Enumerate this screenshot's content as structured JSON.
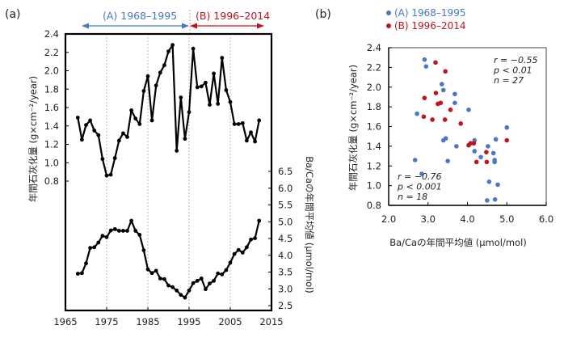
{
  "chart_data": [
    {
      "panel_label": "(a)",
      "type": "line",
      "period_annotations": [
        {
          "label": "(A) 1968–1995",
          "color": "#4a78c2"
        },
        {
          "label": "(B) 1996–2014",
          "color": "#c0141e"
        }
      ],
      "xlabel": "",
      "x_ticks": [
        "1965",
        "1975",
        "1985",
        "1995",
        "2005",
        "2015"
      ],
      "xlim": [
        1965,
        2015
      ],
      "vertical_gridlines": [
        1975,
        1985,
        1995,
        2005
      ],
      "series": [
        {
          "name": "年間石灰化量",
          "axis": "left",
          "ylabel": "年間石灰化量 (g×cm⁻²/year)",
          "y_ticks": [
            "2.4",
            "2.2",
            "2.0",
            "1.8",
            "1.6",
            "1.4",
            "1.2",
            "1.0",
            "0.8"
          ],
          "ylim": [
            0.6,
            2.4
          ],
          "x": [
            1968,
            1969,
            1970,
            1971,
            1972,
            1973,
            1974,
            1975,
            1976,
            1977,
            1978,
            1979,
            1980,
            1981,
            1982,
            1983,
            1984,
            1985,
            1986,
            1987,
            1988,
            1989,
            1990,
            1991,
            1992,
            1993,
            1994,
            1995,
            1996,
            1997,
            1998,
            1999,
            2000,
            2001,
            2002,
            2003,
            2004,
            2005,
            2006,
            2007,
            2008,
            2009,
            2010,
            2011,
            2012
          ],
          "values": [
            1.49,
            1.25,
            1.41,
            1.46,
            1.35,
            1.3,
            1.04,
            0.86,
            0.87,
            1.05,
            1.24,
            1.32,
            1.28,
            1.57,
            1.48,
            1.42,
            1.78,
            1.94,
            1.46,
            1.84,
            1.98,
            2.06,
            2.21,
            2.28,
            1.13,
            1.71,
            1.26,
            1.55,
            2.24,
            1.82,
            1.83,
            1.87,
            1.63,
            1.97,
            1.64,
            2.14,
            1.79,
            1.66,
            1.42,
            1.42,
            1.43,
            1.24,
            1.33,
            1.23,
            1.46
          ]
        },
        {
          "name": "Ba/Ca の年間平均値",
          "axis": "right",
          "ylabel": "Ba/Caの年間平均値 (μmol/mol)",
          "y_ticks": [
            "6.5",
            "6.0",
            "5.5",
            "5.0",
            "4.5",
            "4.0",
            "3.5",
            "3.0",
            "2.5"
          ],
          "ylim": [
            2.5,
            6.5
          ],
          "x": [
            1968,
            1969,
            1970,
            1971,
            1972,
            1973,
            1974,
            1975,
            1976,
            1977,
            1978,
            1979,
            1980,
            1981,
            1982,
            1983,
            1984,
            1985,
            1986,
            1987,
            1988,
            1989,
            1990,
            1991,
            1992,
            1993,
            1994,
            1995,
            1996,
            1997,
            1998,
            1999,
            2000,
            2001,
            2002,
            2003,
            2004,
            2005,
            2006,
            2007,
            2008,
            2009,
            2010,
            2011,
            2012
          ],
          "values": [
            3.45,
            3.47,
            3.76,
            4.22,
            4.24,
            4.38,
            4.58,
            4.54,
            4.74,
            4.78,
            4.73,
            4.73,
            4.73,
            5.03,
            4.73,
            4.61,
            4.15,
            3.58,
            3.47,
            3.54,
            3.31,
            3.29,
            3.1,
            3.05,
            2.95,
            2.82,
            2.74,
            2.95,
            3.17,
            3.24,
            3.31,
            2.99,
            3.16,
            3.24,
            3.46,
            3.43,
            3.56,
            3.78,
            4.04,
            4.16,
            4.08,
            4.24,
            4.47,
            4.51,
            5.03
          ]
        }
      ]
    },
    {
      "panel_label": "(b)",
      "type": "scatter",
      "xlabel": "Ba/Caの年間平均値 (μmol/mol)",
      "ylabel": "年間石灰化量 (g×cm⁻²/year)",
      "xlim": [
        2.0,
        6.0
      ],
      "ylim": [
        0.8,
        2.4
      ],
      "x_ticks": [
        "2.0",
        "3.0",
        "4.0",
        "5.0",
        "6.0"
      ],
      "y_ticks": [
        "2.4",
        "2.2",
        "2.0",
        "1.8",
        "1.6",
        "1.4",
        "1.2",
        "1.0",
        "0.8"
      ],
      "legend": [
        {
          "label": "(A) 1968–1995",
          "color": "#4a78c2"
        },
        {
          "label": "(B) 1996–2014",
          "color": "#c0141e"
        }
      ],
      "legend_position": "top",
      "series": [
        {
          "name": "(A) 1968–1995",
          "color": "#4a78c2",
          "points": [
            [
              2.91,
              2.28
            ],
            [
              2.95,
              2.21
            ],
            [
              3.35,
              2.03
            ],
            [
              3.39,
              1.97
            ],
            [
              3.68,
              1.93
            ],
            [
              3.68,
              1.84
            ],
            [
              2.72,
              1.73
            ],
            [
              4.03,
              1.77
            ],
            [
              5.0,
              1.59
            ],
            [
              3.45,
              1.48
            ],
            [
              3.39,
              1.46
            ],
            [
              3.72,
              1.4
            ],
            [
              4.18,
              1.46
            ],
            [
              4.52,
              1.4
            ],
            [
              4.72,
              1.47
            ],
            [
              4.18,
              1.35
            ],
            [
              4.34,
              1.29
            ],
            [
              4.66,
              1.33
            ],
            [
              4.69,
              1.26
            ],
            [
              4.69,
              1.24
            ],
            [
              2.67,
              1.26
            ],
            [
              3.5,
              1.25
            ],
            [
              2.84,
              1.12
            ],
            [
              4.55,
              1.04
            ],
            [
              4.77,
              1.01
            ],
            [
              4.5,
              0.85
            ],
            [
              4.7,
              0.86
            ]
          ]
        },
        {
          "name": "(B) 1996–2014",
          "color": "#c0141e",
          "points": [
            [
              3.19,
              2.25
            ],
            [
              3.44,
              2.16
            ],
            [
              2.91,
              1.89
            ],
            [
              3.2,
              1.94
            ],
            [
              3.25,
              1.83
            ],
            [
              3.32,
              1.84
            ],
            [
              3.57,
              1.77
            ],
            [
              2.89,
              1.7
            ],
            [
              3.11,
              1.67
            ],
            [
              3.43,
              1.67
            ],
            [
              3.83,
              1.63
            ],
            [
              4.03,
              1.41
            ],
            [
              4.08,
              1.43
            ],
            [
              4.16,
              1.43
            ],
            [
              5.0,
              1.46
            ],
            [
              4.48,
              1.34
            ],
            [
              4.23,
              1.24
            ],
            [
              4.49,
              1.24
            ]
          ]
        }
      ],
      "annotations": [
        {
          "series": "(A) 1968–1995",
          "color": "#4a78c2",
          "lines": [
            "r = −0.55",
            "p < 0.01",
            "n = 27"
          ],
          "position": "top-right"
        },
        {
          "series": "(B) 1996–2014",
          "color": "#c0141e",
          "lines": [
            "r = −0.76",
            "p < 0.001",
            "n = 18"
          ],
          "position": "bottom-left"
        }
      ]
    }
  ]
}
